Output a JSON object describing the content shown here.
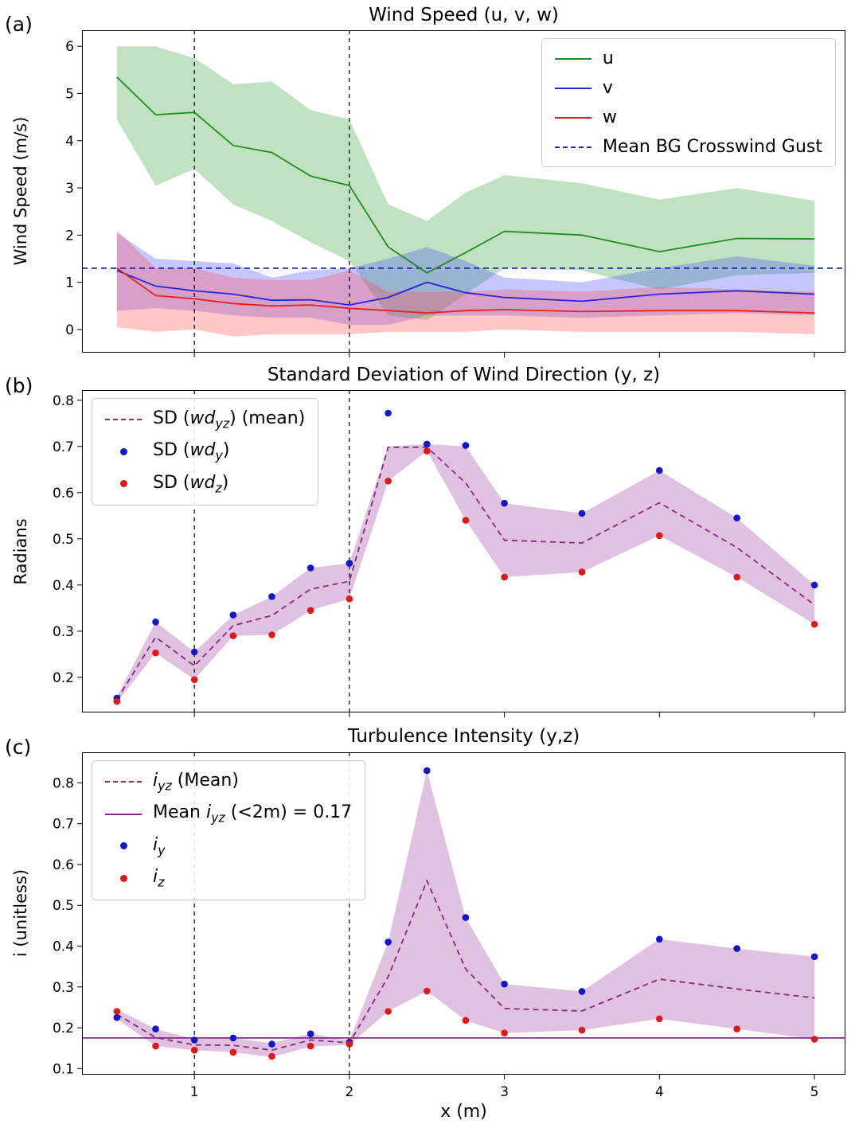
{
  "figure": {
    "xlabel": "x (m)",
    "background": "#ffffff"
  },
  "axes": {
    "xlim": [
      0.275,
      5.2
    ],
    "xticks": [
      1,
      2,
      3,
      4,
      5
    ],
    "xtick_labels": [
      "1",
      "2",
      "3",
      "4",
      "5"
    ]
  },
  "chart_data": [
    {
      "id": "a",
      "type": "line",
      "panel_label": "(a)",
      "title": "Wind Speed (u, v, w)",
      "ylabel": "Wind Speed (m/s)",
      "ylim": [
        -0.49,
        6.34
      ],
      "yticks": [
        0,
        1,
        2,
        3,
        4,
        5,
        6
      ],
      "ytick_labels": [
        "0",
        "1",
        "2",
        "3",
        "4",
        "5",
        "6"
      ],
      "show_xtick_labels": false,
      "vlines": [
        1,
        2
      ],
      "hline": {
        "y": 1.3,
        "label": "Mean BG Crosswind Gust",
        "color": "#2121cd",
        "style": "dashed"
      },
      "x": [
        0.5,
        0.75,
        1.0,
        1.25,
        1.5,
        1.75,
        2.0,
        2.25,
        2.5,
        2.75,
        3.0,
        3.5,
        4.0,
        4.5,
        5.0
      ],
      "series": [
        {
          "name": "u",
          "color": "#238b23",
          "band_color": "#2e9e2e",
          "mean": [
            5.35,
            4.55,
            4.6,
            3.9,
            3.75,
            3.25,
            3.05,
            1.75,
            1.2,
            1.63,
            2.08,
            2.0,
            1.65,
            1.93,
            1.92
          ],
          "upper": [
            6.0,
            6.0,
            5.75,
            5.2,
            5.25,
            4.65,
            4.45,
            2.65,
            2.3,
            2.9,
            3.27,
            3.1,
            2.75,
            3.0,
            2.73
          ],
          "lower": [
            4.45,
            3.05,
            3.4,
            2.65,
            2.3,
            1.85,
            1.45,
            0.3,
            0.2,
            0.75,
            1.3,
            1.25,
            0.85,
            1.15,
            1.2
          ]
        },
        {
          "name": "v",
          "color": "#2626d8",
          "band_color": "#4545ff",
          "mean": [
            1.25,
            0.92,
            0.82,
            0.75,
            0.62,
            0.63,
            0.52,
            0.68,
            1.0,
            0.78,
            0.68,
            0.6,
            0.75,
            0.82,
            0.75
          ],
          "upper": [
            2.05,
            1.5,
            1.45,
            1.4,
            1.1,
            1.25,
            1.3,
            1.5,
            1.75,
            1.45,
            1.1,
            1.0,
            1.3,
            1.55,
            1.35
          ],
          "lower": [
            0.4,
            0.45,
            0.4,
            0.3,
            0.25,
            0.25,
            0.1,
            0.1,
            0.3,
            0.3,
            0.3,
            0.25,
            0.3,
            0.35,
            0.3
          ]
        },
        {
          "name": "w",
          "color": "#e32222",
          "band_color": "#ff4545",
          "mean": [
            1.3,
            0.72,
            0.65,
            0.55,
            0.5,
            0.52,
            0.45,
            0.4,
            0.35,
            0.4,
            0.42,
            0.38,
            0.4,
            0.4,
            0.35
          ],
          "upper": [
            2.1,
            1.3,
            1.3,
            1.1,
            1.05,
            1.05,
            1.25,
            0.8,
            0.8,
            0.8,
            0.85,
            0.8,
            0.9,
            0.85,
            0.8
          ],
          "lower": [
            0.05,
            -0.05,
            0.0,
            -0.15,
            -0.1,
            -0.1,
            -0.1,
            -0.05,
            -0.05,
            -0.05,
            0.0,
            -0.05,
            -0.05,
            -0.05,
            -0.1
          ]
        }
      ],
      "legend": {
        "position": "top-right",
        "items": [
          {
            "name": "u",
            "sample": "line",
            "dash": false,
            "color": "#238b23",
            "parts": [
              {
                "t": "u"
              }
            ]
          },
          {
            "name": "v",
            "sample": "line",
            "dash": false,
            "color": "#2626d8",
            "parts": [
              {
                "t": "v"
              }
            ]
          },
          {
            "name": "w",
            "sample": "line",
            "dash": false,
            "color": "#e32222",
            "parts": [
              {
                "t": "w"
              }
            ]
          },
          {
            "name": "mean-bg-crosswind-gust",
            "sample": "line",
            "dash": true,
            "color": "#2121cd",
            "parts": [
              {
                "t": "Mean BG Crosswind Gust"
              }
            ]
          }
        ]
      }
    },
    {
      "id": "b",
      "type": "scatter",
      "panel_label": "(b)",
      "title": "Standard Deviation of Wind Direction (y, z)",
      "ylabel": "Radians",
      "ylim": [
        0.124,
        0.822
      ],
      "yticks": [
        0.2,
        0.3,
        0.4,
        0.5,
        0.6,
        0.7,
        0.8
      ],
      "ytick_labels": [
        "0.2",
        "0.3",
        "0.4",
        "0.5",
        "0.6",
        "0.7",
        "0.8"
      ],
      "show_xtick_labels": false,
      "vlines": [
        1,
        2
      ],
      "x": [
        0.5,
        0.75,
        1.0,
        1.25,
        1.5,
        1.75,
        2.0,
        2.25,
        2.5,
        2.75,
        3.0,
        3.5,
        4.0,
        4.5,
        5.0
      ],
      "mean": {
        "color": "#842b84",
        "dash": true,
        "values": [
          0.152,
          0.287,
          0.225,
          0.312,
          0.334,
          0.391,
          0.408,
          0.698,
          0.698,
          0.621,
          0.497,
          0.491,
          0.578,
          0.481,
          0.357
        ]
      },
      "band": {
        "color": "#993399",
        "upper": [
          0.158,
          0.32,
          0.255,
          0.335,
          0.375,
          0.437,
          0.447,
          0.7,
          0.705,
          0.7,
          0.577,
          0.555,
          0.648,
          0.545,
          0.4
        ],
        "lower": [
          0.146,
          0.253,
          0.195,
          0.29,
          0.292,
          0.345,
          0.37,
          0.625,
          0.69,
          0.54,
          0.417,
          0.428,
          0.507,
          0.417,
          0.315
        ]
      },
      "points": [
        {
          "name": "sd-wdy",
          "color": "#1414cc",
          "values": [
            0.155,
            0.32,
            0.255,
            0.335,
            0.375,
            0.437,
            0.447,
            0.772,
            0.705,
            0.702,
            0.577,
            0.555,
            0.648,
            0.545,
            0.4
          ]
        },
        {
          "name": "sd-wdz",
          "color": "#e01818",
          "values": [
            0.148,
            0.253,
            0.195,
            0.29,
            0.292,
            0.345,
            0.37,
            0.625,
            0.69,
            0.54,
            0.417,
            0.428,
            0.507,
            0.417,
            0.315
          ]
        }
      ],
      "legend": {
        "position": "top-left",
        "items": [
          {
            "name": "sd-wdyz-mean",
            "sample": "line",
            "dash": true,
            "color": "#842b84",
            "parts": [
              {
                "t": "SD ("
              },
              {
                "t": "wd",
                "i": true
              },
              {
                "t": "yz",
                "i": true,
                "sub": true
              },
              {
                "t": ") (mean)"
              }
            ]
          },
          {
            "name": "sd-wdy",
            "sample": "dot",
            "color": "#1414cc",
            "parts": [
              {
                "t": "SD ("
              },
              {
                "t": "wd",
                "i": true
              },
              {
                "t": "y",
                "i": true,
                "sub": true
              },
              {
                "t": ")"
              }
            ]
          },
          {
            "name": "sd-wdz",
            "sample": "dot",
            "color": "#e01818",
            "parts": [
              {
                "t": "SD ("
              },
              {
                "t": "wd",
                "i": true
              },
              {
                "t": "z",
                "i": true,
                "sub": true
              },
              {
                "t": ")"
              }
            ]
          }
        ]
      }
    },
    {
      "id": "c",
      "type": "scatter",
      "panel_label": "(c)",
      "title": "Turbulence Intensity (y,z)",
      "ylabel": "i (unitless)",
      "ylim": [
        0.085,
        0.875
      ],
      "yticks": [
        0.1,
        0.2,
        0.3,
        0.4,
        0.5,
        0.6,
        0.7,
        0.8
      ],
      "ytick_labels": [
        "0.1",
        "0.2",
        "0.3",
        "0.4",
        "0.5",
        "0.6",
        "0.7",
        "0.8"
      ],
      "show_xtick_labels": true,
      "vlines": [
        1,
        2
      ],
      "hline": {
        "y": 0.175,
        "label": "Mean iyz (<2m) = 0.17",
        "color": "#842b84",
        "style": "solid"
      },
      "x": [
        0.5,
        0.75,
        1.0,
        1.25,
        1.5,
        1.75,
        2.0,
        2.25,
        2.5,
        2.75,
        3.0,
        3.5,
        4.0,
        4.5,
        5.0
      ],
      "mean": {
        "color": "#842b84",
        "dash": true,
        "values": [
          0.233,
          0.176,
          0.158,
          0.157,
          0.145,
          0.17,
          0.163,
          0.325,
          0.56,
          0.344,
          0.247,
          0.241,
          0.319,
          0.295,
          0.273
        ]
      },
      "band": {
        "color": "#993399",
        "upper": [
          0.245,
          0.197,
          0.172,
          0.175,
          0.162,
          0.186,
          0.168,
          0.41,
          0.83,
          0.47,
          0.307,
          0.289,
          0.417,
          0.394,
          0.374
        ],
        "lower": [
          0.222,
          0.155,
          0.145,
          0.14,
          0.128,
          0.154,
          0.158,
          0.24,
          0.29,
          0.218,
          0.187,
          0.194,
          0.222,
          0.197,
          0.172
        ]
      },
      "points": [
        {
          "name": "iy",
          "color": "#1414cc",
          "values": [
            0.225,
            0.197,
            0.17,
            0.175,
            0.16,
            0.185,
            0.165,
            0.41,
            0.83,
            0.47,
            0.307,
            0.289,
            0.417,
            0.394,
            0.374
          ]
        },
        {
          "name": "iz",
          "color": "#e01818",
          "values": [
            0.24,
            0.155,
            0.145,
            0.14,
            0.13,
            0.155,
            0.16,
            0.24,
            0.29,
            0.218,
            0.187,
            0.194,
            0.222,
            0.197,
            0.172
          ]
        }
      ],
      "legend": {
        "position": "top-left",
        "items": [
          {
            "name": "iyz-mean",
            "sample": "line",
            "dash": true,
            "color": "#842b84",
            "parts": [
              {
                "t": "i",
                "i": true
              },
              {
                "t": "yz",
                "i": true,
                "sub": true
              },
              {
                "t": " (Mean)"
              }
            ]
          },
          {
            "name": "mean-iyz-below-2m",
            "sample": "line",
            "dash": false,
            "color": "#842b84",
            "parts": [
              {
                "t": "Mean "
              },
              {
                "t": "i",
                "i": true
              },
              {
                "t": "yz",
                "i": true,
                "sub": true
              },
              {
                "t": " (<2m) = 0.17"
              }
            ]
          },
          {
            "name": "iy",
            "sample": "dot",
            "color": "#1414cc",
            "parts": [
              {
                "t": "i",
                "i": true
              },
              {
                "t": "y",
                "i": true,
                "sub": true
              }
            ]
          },
          {
            "name": "iz",
            "sample": "dot",
            "color": "#e01818",
            "parts": [
              {
                "t": "i",
                "i": true
              },
              {
                "t": "z",
                "i": true,
                "sub": true
              }
            ]
          }
        ]
      }
    }
  ]
}
